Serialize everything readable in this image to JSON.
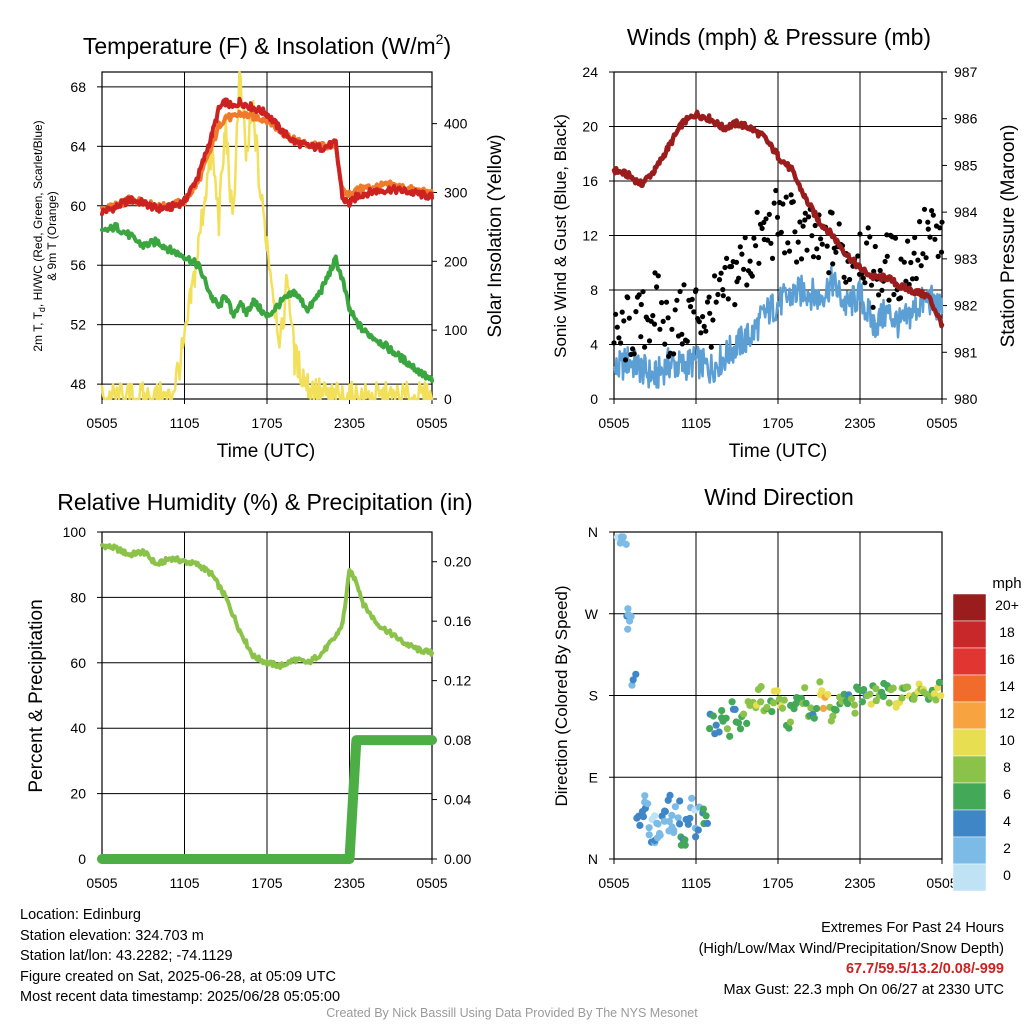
{
  "panels": {
    "temperature": {
      "title": "Temperature (F) & Insolation (W/m",
      "title_sup": "2",
      "title_close": ")",
      "ylabel_left_1": "2m T, T",
      "ylabel_left_sub": "d",
      "ylabel_left_2": ", HI/WC (Red, Green, Scarlet/Blue)",
      "ylabel_left_3": "& 9m T (Orange)",
      "ylabel_right": "Solar Insolation (Yellow)",
      "xlabel": "Time (UTC)"
    },
    "wind": {
      "title": "Winds (mph) & Pressure (mb)",
      "ylabel_left": "Sonic Wind & Gust (Blue, Black)",
      "ylabel_right": "Station Pressure (Maroon)",
      "xlabel": "Time (UTC)"
    },
    "humidity": {
      "title": "Relative Humidity (%) & Precipitation (in)",
      "ylabel_left": "Percent & Precipitation"
    },
    "direction": {
      "title": "Wind Direction",
      "ylabel_left": "Direction (Colored By Speed)",
      "colorbar_title": "mph",
      "colorbar_labels": [
        "20+",
        "18",
        "16",
        "14",
        "12",
        "10",
        "8",
        "6",
        "4",
        "2",
        "0"
      ],
      "colorbar_colors": [
        "#9b1c1c",
        "#c8282a",
        "#e03530",
        "#f06b2c",
        "#f7a340",
        "#e8de52",
        "#8bc34a",
        "#43a857",
        "#3f86c6",
        "#7bbbe6",
        "#bfe2f5"
      ]
    }
  },
  "chart_data": [
    {
      "type": "line",
      "title": "Temperature (F) & Insolation (W/m2)",
      "xlabel": "Time (UTC)",
      "x_ticks": [
        "0505",
        "1105",
        "1705",
        "2305",
        "0505"
      ],
      "x_range_hours": [
        0,
        24
      ],
      "ylim": [
        47,
        69
      ],
      "y_ticks": [
        48,
        52,
        56,
        60,
        64,
        68
      ],
      "y2lim": [
        0,
        475
      ],
      "y2_ticks": [
        0,
        100,
        200,
        300,
        400
      ],
      "grid": true,
      "series": [
        {
          "color": "#cc2222",
          "axis": "left",
          "x": [
            0,
            1,
            2,
            3,
            4,
            5,
            6,
            7,
            8,
            8.5,
            9,
            9.5,
            10,
            10.5,
            11,
            12,
            13,
            14,
            15,
            16,
            17,
            17.5,
            18,
            18.5,
            19,
            20,
            21,
            22,
            23,
            24
          ],
          "values": [
            59.6,
            59.9,
            60.4,
            60.2,
            59.8,
            59.9,
            60.3,
            62.0,
            64.8,
            66.5,
            67.0,
            66.6,
            67.0,
            66.8,
            66.6,
            66.2,
            65.1,
            64.3,
            64.0,
            63.9,
            64.2,
            60.5,
            60.1,
            60.6,
            60.8,
            61.0,
            61.1,
            61.0,
            60.8,
            60.6
          ]
        },
        {
          "color": "#f07a2c",
          "axis": "left",
          "x": [
            0,
            1,
            2,
            3,
            4,
            5,
            6,
            7,
            8,
            8.5,
            9,
            9.5,
            10,
            10.5,
            11,
            12,
            13,
            14,
            15,
            16,
            17,
            17.5,
            18,
            18.5,
            19,
            20,
            21,
            22,
            23,
            24
          ],
          "values": [
            59.7,
            60.0,
            60.4,
            60.3,
            59.9,
            60.0,
            60.3,
            61.6,
            64.0,
            65.4,
            66.0,
            65.9,
            66.2,
            66.1,
            66.0,
            65.8,
            65.0,
            64.4,
            64.1,
            64.0,
            64.1,
            60.9,
            60.8,
            61.0,
            61.2,
            61.3,
            61.4,
            61.2,
            61.0,
            60.8
          ]
        },
        {
          "color": "#3aa640",
          "axis": "left",
          "x": [
            0,
            1,
            2,
            3,
            4,
            5,
            6,
            7,
            8,
            8.5,
            9,
            9.5,
            10,
            10.5,
            11,
            12,
            13,
            14,
            15,
            16,
            17,
            17.5,
            18,
            18.5,
            19,
            20,
            21,
            22,
            23,
            24
          ],
          "values": [
            58.2,
            58.6,
            58.0,
            57.3,
            57.6,
            57.0,
            56.6,
            56.0,
            53.8,
            53.2,
            54.0,
            52.6,
            53.4,
            52.8,
            53.6,
            52.5,
            53.5,
            54.2,
            53.0,
            54.4,
            56.4,
            55.0,
            53.0,
            52.2,
            51.6,
            51.0,
            50.3,
            49.6,
            48.9,
            48.2
          ]
        },
        {
          "color": "#f2e05a",
          "axis": "right",
          "x": [
            0,
            1,
            2,
            3,
            4,
            5,
            6,
            6.5,
            7,
            7.5,
            8,
            8.5,
            9,
            9.5,
            10,
            10.5,
            11,
            11.5,
            12,
            12.5,
            13,
            13.5,
            14,
            15,
            16,
            17,
            18,
            19,
            20,
            21,
            22,
            23,
            24
          ],
          "values": [
            0,
            0,
            0,
            0,
            0,
            0,
            80,
            150,
            220,
            300,
            360,
            260,
            400,
            250,
            470,
            350,
            420,
            300,
            230,
            150,
            80,
            180,
            60,
            20,
            5,
            0,
            0,
            0,
            0,
            0,
            0,
            0,
            0
          ]
        }
      ]
    },
    {
      "type": "line",
      "title": "Winds (mph) & Pressure (mb)",
      "xlabel": "Time (UTC)",
      "x_ticks": [
        "0505",
        "1105",
        "1705",
        "2305",
        "0505"
      ],
      "x_range_hours": [
        0,
        24
      ],
      "ylim": [
        0,
        24
      ],
      "y_ticks": [
        0,
        4,
        8,
        12,
        16,
        20,
        24
      ],
      "y2lim": [
        980,
        987
      ],
      "y2_ticks": [
        980,
        981,
        982,
        983,
        984,
        985,
        986,
        987
      ],
      "grid": true,
      "series": [
        {
          "color": "#5b9fd4",
          "axis": "left",
          "x": [
            0,
            1,
            2,
            3,
            4,
            5,
            6,
            7,
            8,
            9,
            10,
            11,
            12,
            13,
            14,
            15,
            16,
            17,
            18,
            19,
            20,
            21,
            22,
            23,
            24
          ],
          "values": [
            2.0,
            2.8,
            2.2,
            1.6,
            2.6,
            2.4,
            2.8,
            2.2,
            3.0,
            4.0,
            4.6,
            6.2,
            7.0,
            7.6,
            8.0,
            7.4,
            8.6,
            6.8,
            7.6,
            5.4,
            6.4,
            5.4,
            6.6,
            7.4,
            6.4
          ]
        },
        {
          "color": "#000000",
          "axis": "left",
          "type": "scatter",
          "x": [
            0,
            1,
            2,
            3,
            4,
            5,
            6,
            7,
            8,
            9,
            10,
            11,
            12,
            13,
            14,
            15,
            16,
            17,
            18,
            19,
            20,
            21,
            22,
            23,
            24
          ],
          "values": [
            3.8,
            5.2,
            5.4,
            7.0,
            5.2,
            5.8,
            6.6,
            6.0,
            7.4,
            9.4,
            10.6,
            12.0,
            13.0,
            12.6,
            11.8,
            11.0,
            11.6,
            10.2,
            11.4,
            9.0,
            9.8,
            9.4,
            10.8,
            12.0,
            11.0
          ]
        },
        {
          "color": "#9b1c1c",
          "axis": "right",
          "x": [
            0,
            1,
            2,
            3,
            4,
            5,
            6,
            7,
            8,
            9,
            10,
            11,
            12,
            13,
            14,
            15,
            16,
            17,
            18,
            19,
            20,
            21,
            22,
            23,
            24
          ],
          "values": [
            984.9,
            984.8,
            984.6,
            984.9,
            985.4,
            985.9,
            986.1,
            986.0,
            985.8,
            985.9,
            985.8,
            985.6,
            985.2,
            984.9,
            984.3,
            983.8,
            983.5,
            983.1,
            982.8,
            982.6,
            982.6,
            982.4,
            982.3,
            982.2,
            981.6
          ]
        }
      ]
    },
    {
      "type": "line",
      "title": "Relative Humidity (%) & Precipitation (in)",
      "x_ticks": [
        "0505",
        "1105",
        "1705",
        "2305",
        "0505"
      ],
      "x_range_hours": [
        0,
        24
      ],
      "ylim": [
        0,
        100
      ],
      "y_ticks": [
        0,
        20,
        40,
        60,
        80,
        100
      ],
      "y2lim": [
        0,
        0.22
      ],
      "y2_ticks": [
        0.0,
        0.04,
        0.08,
        0.12,
        0.16,
        0.2
      ],
      "grid": true,
      "series": [
        {
          "color": "#8bc34a",
          "axis": "left",
          "x": [
            0,
            1,
            2,
            3,
            4,
            5,
            6,
            7,
            8,
            9,
            10,
            11,
            12,
            13,
            14,
            15,
            16,
            17,
            17.5,
            18,
            18.5,
            19,
            20,
            21,
            22,
            23,
            24
          ],
          "values": [
            96,
            95,
            93,
            94,
            90,
            92,
            91,
            90,
            87,
            80,
            70,
            62,
            60,
            59,
            61,
            60,
            63,
            68,
            72,
            88,
            85,
            78,
            72,
            69,
            66,
            64,
            63
          ]
        },
        {
          "color": "#4cae44",
          "axis": "right",
          "x": [
            0,
            2,
            4,
            6,
            8,
            10,
            12,
            14,
            16,
            18,
            18.5,
            20,
            22,
            24
          ],
          "values": [
            0.0,
            0.0,
            0.0,
            0.0,
            0.0,
            0.0,
            0.0,
            0.0,
            0.0,
            0.0,
            0.08,
            0.08,
            0.08,
            0.08
          ]
        }
      ]
    },
    {
      "type": "scatter",
      "title": "Wind Direction",
      "x_ticks": [
        "0505",
        "1105",
        "1705",
        "2305",
        "0505"
      ],
      "x_range_hours": [
        0,
        24
      ],
      "y_ticks": [
        "N",
        "E",
        "S",
        "W",
        "N"
      ],
      "ylim_degrees": [
        0,
        360
      ],
      "grid": true,
      "legend": "right",
      "colorbar_title": "mph",
      "series": [
        {
          "x": [
            0.3,
            0.6,
            0.9,
            1.0,
            1.3,
            1.7,
            2.0,
            2.2,
            2.5,
            2.8,
            3.0,
            3.2,
            3.5,
            3.8,
            4.0,
            4.2,
            4.5,
            4.8,
            5.0,
            5.3,
            5.6,
            5.9,
            6.3,
            6.6,
            7.0,
            7.4,
            7.8,
            8.2,
            8.6,
            9.0,
            9.4,
            9.8,
            10.2,
            10.6,
            11.0,
            11.4,
            11.8,
            12.2,
            12.6,
            13.0,
            13.4,
            13.8,
            14.2,
            14.6,
            15.0,
            15.4,
            15.8,
            16.2,
            16.6,
            17.0,
            17.4,
            17.8,
            18.2,
            18.6,
            19.0,
            19.4,
            19.8,
            20.2,
            20.6,
            21.0,
            21.4,
            21.8,
            22.2,
            22.6,
            23.0,
            23.4,
            23.8
          ],
          "values": [
            350,
            345,
            270,
            260,
            200,
            40,
            50,
            60,
            35,
            20,
            45,
            30,
            50,
            60,
            40,
            35,
            55,
            30,
            20,
            45,
            60,
            30,
            50,
            40,
            150,
            140,
            160,
            145,
            170,
            150,
            155,
            175,
            165,
            180,
            160,
            170,
            185,
            165,
            150,
            175,
            170,
            180,
            160,
            165,
            185,
            175,
            160,
            170,
            180,
            175,
            170,
            185,
            180,
            175,
            182,
            178,
            185,
            180,
            176,
            183,
            180,
            178,
            185,
            182,
            180,
            184,
            186
          ],
          "speeds": [
            1,
            2,
            3,
            2,
            3,
            3,
            4,
            2,
            2,
            3,
            1,
            2,
            3,
            4,
            2,
            3,
            2,
            4,
            5,
            3,
            2,
            3,
            4,
            5,
            5,
            4,
            6,
            7,
            5,
            6,
            7,
            8,
            9,
            8,
            7,
            6,
            9,
            8,
            7,
            6,
            5,
            7,
            8,
            6,
            9,
            11,
            8,
            7,
            6,
            5,
            8,
            7,
            6,
            9,
            8,
            7,
            6,
            8,
            9,
            7,
            8,
            6,
            9,
            8,
            7,
            9,
            8
          ]
        }
      ]
    }
  ],
  "info": {
    "location": "Location: Edinburg",
    "elevation": "Station elevation: 324.703 m",
    "latlon": "Station lat/lon: 43.2282; -74.1129",
    "created": "Figure created on Sat, 2025-06-28, at 05:09 UTC",
    "recent": "Most recent data timestamp: 2025/06/28 05:05:00",
    "extremes_title": "Extremes For Past 24 Hours",
    "extremes_subtitle": "(High/Low/Max Wind/Precipitation/Snow Depth)",
    "extremes_values": "67.7/59.5/13.2/0.08/-999",
    "max_gust": "Max Gust: 22.3 mph On 06/27 at 2330 UTC"
  },
  "credit": "Created By Nick Bassill Using Data Provided By The NYS Mesonet"
}
